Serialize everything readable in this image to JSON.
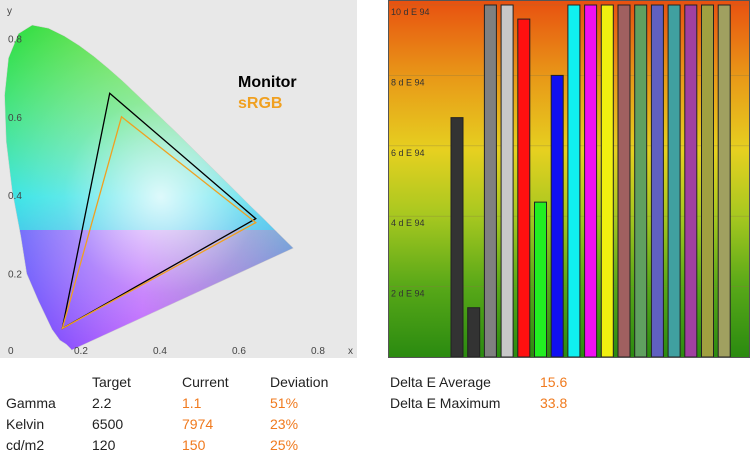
{
  "gamut": {
    "axis_x_label": "x",
    "axis_y_label": "y",
    "x_ticks": [
      "0",
      "0.2",
      "0.4",
      "0.6",
      "0.8"
    ],
    "y_ticks": [
      "0.8",
      "0.6",
      "0.4",
      "0.2"
    ],
    "legend_monitor": "Monitor",
    "legend_srgb": "sRGB",
    "colors": {
      "monitor": "#000000",
      "srgb": "#f0a020",
      "background": "#e8e8e8"
    }
  },
  "chart_data": [
    {
      "type": "scatter",
      "title": "",
      "xlabel": "x",
      "ylabel": "y",
      "xlim": [
        0,
        0.9
      ],
      "ylim": [
        0,
        0.9
      ],
      "grid": false,
      "legend": "top-right",
      "series": [
        {
          "name": "Monitor",
          "points": [
            [
              0.27,
              0.66
            ],
            [
              0.64,
              0.34
            ],
            [
              0.15,
              0.06
            ]
          ]
        },
        {
          "name": "sRGB",
          "points": [
            [
              0.3,
              0.6
            ],
            [
              0.64,
              0.33
            ],
            [
              0.15,
              0.06
            ]
          ]
        }
      ]
    },
    {
      "type": "bar",
      "title": "",
      "xlabel": "",
      "ylabel": "d E 94",
      "ylim": [
        0,
        10
      ],
      "tick_labels": [
        "10 d E 94",
        "8 d E 94",
        "6 d E 94",
        "4 d E 94",
        "2 d E 94"
      ],
      "grid": true,
      "values": [
        6.8,
        1.4,
        10,
        10,
        9.6,
        4.4,
        8.0,
        10,
        10,
        10,
        10,
        10,
        10,
        10,
        10,
        10,
        10
      ],
      "colors": [
        "#333333",
        "#333333",
        "#808080",
        "#c8c8c8",
        "#ff1010",
        "#22ee22",
        "#1010f0",
        "#10f0f0",
        "#f010f0",
        "#f0f010",
        "#a06060",
        "#60a060",
        "#6060c0",
        "#40a0a0",
        "#a040a0",
        "#a0a040",
        "#a0a060"
      ]
    }
  ],
  "stats": {
    "headers": [
      "Target",
      "Current",
      "Deviation"
    ],
    "rows": [
      {
        "label": "Gamma",
        "target": "2.2",
        "current": "1.1",
        "deviation": "51%"
      },
      {
        "label": "Kelvin",
        "target": "6500",
        "current": "7974",
        "deviation": "23%"
      },
      {
        "label": "cd/m2",
        "target": "120",
        "current": "150",
        "deviation": "25%"
      }
    ],
    "delta_avg_label": "Delta E Average",
    "delta_avg_value": "15.6",
    "delta_max_label": "Delta E Maximum",
    "delta_max_value": "33.8"
  }
}
